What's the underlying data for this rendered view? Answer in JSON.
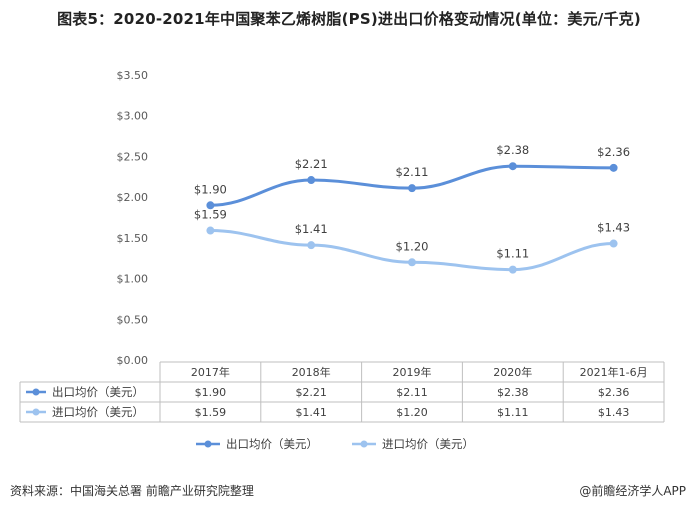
{
  "title": "图表5：2020-2021年中国聚苯乙烯树脂(PS)进出口价格变动情况(单位：美元/千克)",
  "chart_data": {
    "type": "line",
    "categories": [
      "2017年",
      "2018年",
      "2019年",
      "2020年",
      "2021年1-6月"
    ],
    "series": [
      {
        "name": "出口均价（美元）",
        "values": [
          1.9,
          2.21,
          2.11,
          2.38,
          2.36
        ],
        "labels": [
          "$1.90",
          "$2.21",
          "$2.11",
          "$2.38",
          "$2.36"
        ],
        "color": "#5b8fd9"
      },
      {
        "name": "进口均价（美元）",
        "values": [
          1.59,
          1.41,
          1.2,
          1.11,
          1.43
        ],
        "labels": [
          "$1.59",
          "$1.41",
          "$1.20",
          "$1.11",
          "$1.43"
        ],
        "color": "#9dc3ef"
      }
    ],
    "y_ticks": [
      "$0.00",
      "$0.50",
      "$1.00",
      "$1.50",
      "$2.00",
      "$2.50",
      "$3.00",
      "$3.50"
    ],
    "ylim": [
      0,
      3.5
    ],
    "grid": false,
    "legend": "bottom-center",
    "data_table": true
  },
  "footer": {
    "source": "资料来源：中国海关总署 前瞻产业研究院整理",
    "brand": "@前瞻经济学人APP"
  }
}
